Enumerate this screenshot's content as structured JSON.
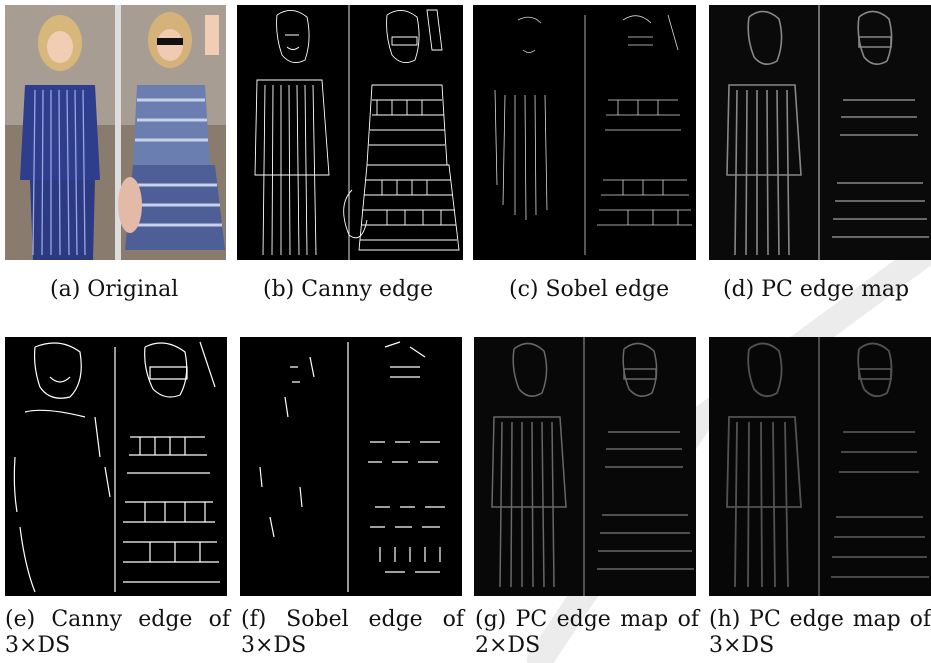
{
  "figure": {
    "panels": [
      {
        "id": "a",
        "caption": "(a) Original",
        "kind": "photo"
      },
      {
        "id": "b",
        "caption": "(b) Canny edge",
        "kind": "canny"
      },
      {
        "id": "c",
        "caption": "(c) Sobel edge",
        "kind": "sobel"
      },
      {
        "id": "d",
        "caption": "(d) PC edge map",
        "kind": "pc"
      },
      {
        "id": "e",
        "caption_words": [
          "(e)",
          "Canny",
          "edge",
          "of"
        ],
        "caption_line2": "3×DS",
        "kind": "canny-ds"
      },
      {
        "id": "f",
        "caption_words": [
          "(f)",
          "Sobel",
          "edge",
          "of"
        ],
        "caption_line2": "3×DS",
        "kind": "sobel-ds"
      },
      {
        "id": "g",
        "caption_words": [
          "(g)",
          "PC",
          "edge",
          "map",
          "of"
        ],
        "caption_line2": "2×DS",
        "kind": "pc-ds2"
      },
      {
        "id": "h",
        "caption_words": [
          "(h)",
          "PC",
          "edge",
          "map",
          "of"
        ],
        "caption_line2": "3×DS",
        "kind": "pc-ds3"
      }
    ]
  },
  "colors": {
    "edge_bg": "#000000",
    "edge_line": "#ffffff",
    "watermark": "#e9e9e9"
  }
}
